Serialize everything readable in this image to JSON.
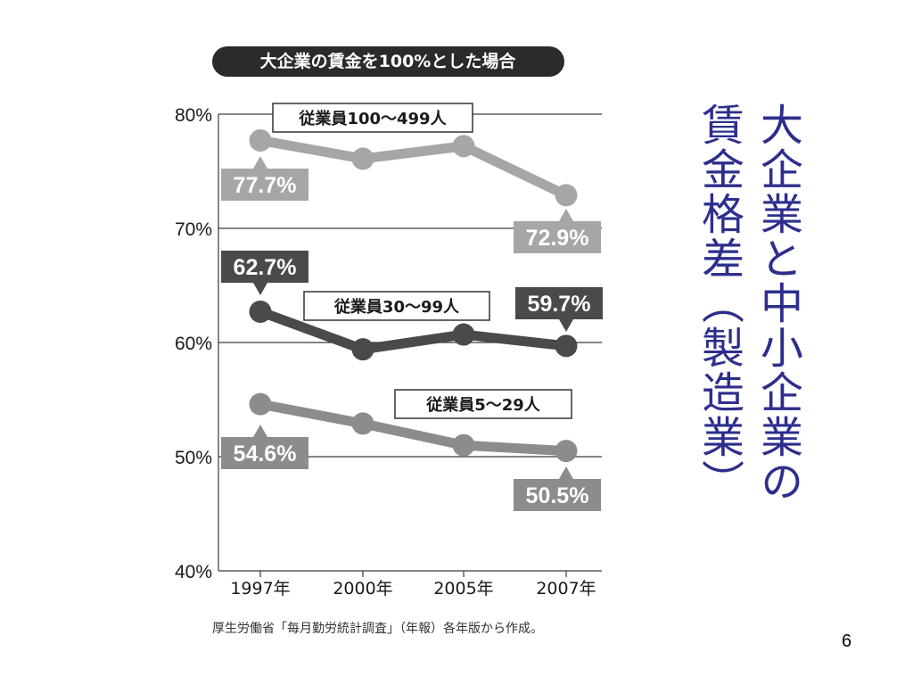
{
  "slide": {
    "title_line_1": "大企業と中小企業の",
    "title_line_2": "賃金格差（製造業）",
    "source": "厚生労働省「毎月勤労統計調査」（年報）各年版から作成。",
    "page_number": "6"
  },
  "chart_data": {
    "type": "line",
    "title": "大企業の賃金を100%とした場合",
    "categories": [
      "1997年",
      "2000年",
      "2005年",
      "2007年"
    ],
    "ylim": [
      40,
      80
    ],
    "yticks": [
      {
        "value": 80,
        "label": "80%"
      },
      {
        "value": 70,
        "label": "70%"
      },
      {
        "value": 60,
        "label": "60%"
      },
      {
        "value": 50,
        "label": "50%"
      },
      {
        "value": 40,
        "label": "40%"
      }
    ],
    "grid": true,
    "series": [
      {
        "name": "従業員100〜499人",
        "values": [
          77.7,
          76.1,
          77.2,
          72.9
        ],
        "color": "#a6a6a6",
        "value_labels": [
          "77.7%",
          "",
          "",
          "72.9%"
        ]
      },
      {
        "name": "従業員30〜99人",
        "values": [
          62.7,
          59.4,
          60.7,
          59.7
        ],
        "color": "#4a4a4a",
        "value_labels": [
          "62.7%",
          "",
          "",
          "59.7%"
        ]
      },
      {
        "name": "従業員5〜29人",
        "values": [
          54.6,
          52.9,
          51.0,
          50.5
        ],
        "color": "#8c8c8c",
        "value_labels": [
          "54.6%",
          "",
          "",
          "50.5%"
        ]
      }
    ]
  }
}
